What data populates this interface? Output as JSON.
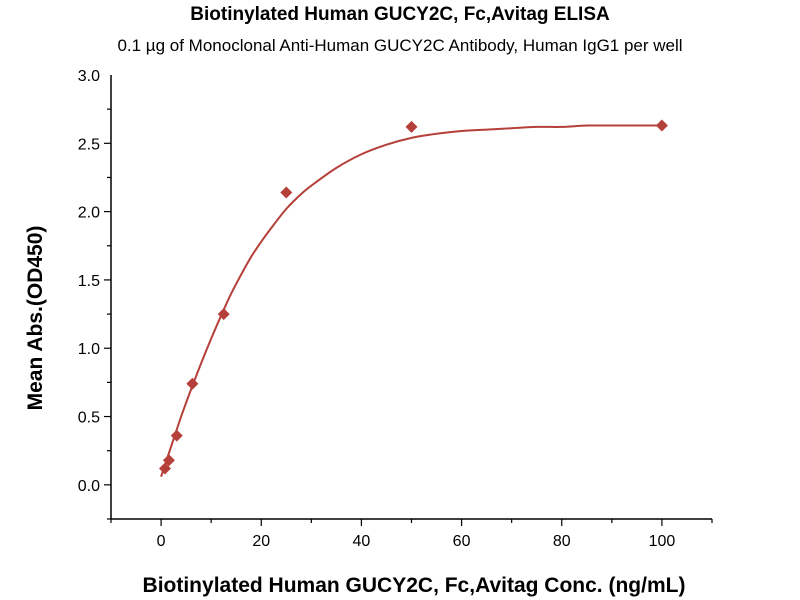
{
  "chart_data": {
    "type": "scatter",
    "title": "Biotinylated Human GUCY2C, Fc,Avitag ELISA",
    "subtitle": "0.1 µg of Monoclonal Anti-Human GUCY2C Antibody, Human IgG1 per well",
    "xlabel": "Biotinylated Human GUCY2C, Fc,Avitag Conc. (ng/mL)",
    "ylabel": "Mean Abs.(OD450)",
    "xlim": [
      -10,
      110
    ],
    "ylim": [
      -0.25,
      3.0
    ],
    "xticks": [
      0,
      20,
      40,
      60,
      80,
      100
    ],
    "yticks": [
      0.0,
      0.5,
      1.0,
      1.5,
      2.0,
      2.5,
      3.0
    ],
    "xtick_labels": [
      "0",
      "20",
      "40",
      "60",
      "80",
      "100"
    ],
    "ytick_labels": [
      "0.0",
      "0.5",
      "1.0",
      "1.5",
      "2.0",
      "2.5",
      "3.0"
    ],
    "grid": false,
    "colors": {
      "series": "#b5403a",
      "axis": "#000000"
    },
    "series": [
      {
        "marker": "diamond",
        "x": [
          0.78,
          1.56,
          3.13,
          6.25,
          12.5,
          25,
          50,
          100
        ],
        "y": [
          0.12,
          0.18,
          0.36,
          0.74,
          1.25,
          2.14,
          2.62,
          2.63
        ]
      }
    ],
    "fit_curve": {
      "x": [
        0,
        2,
        4,
        6,
        8,
        10,
        12,
        14,
        16,
        18,
        20,
        22,
        25,
        28,
        30,
        35,
        40,
        45,
        50,
        55,
        60,
        65,
        70,
        75,
        80,
        85,
        90,
        95,
        100
      ],
      "y": [
        0.06,
        0.28,
        0.5,
        0.7,
        0.89,
        1.07,
        1.24,
        1.4,
        1.54,
        1.67,
        1.78,
        1.88,
        2.02,
        2.13,
        2.19,
        2.32,
        2.42,
        2.49,
        2.54,
        2.57,
        2.59,
        2.6,
        2.61,
        2.62,
        2.62,
        2.63,
        2.63,
        2.63,
        2.63
      ]
    }
  }
}
